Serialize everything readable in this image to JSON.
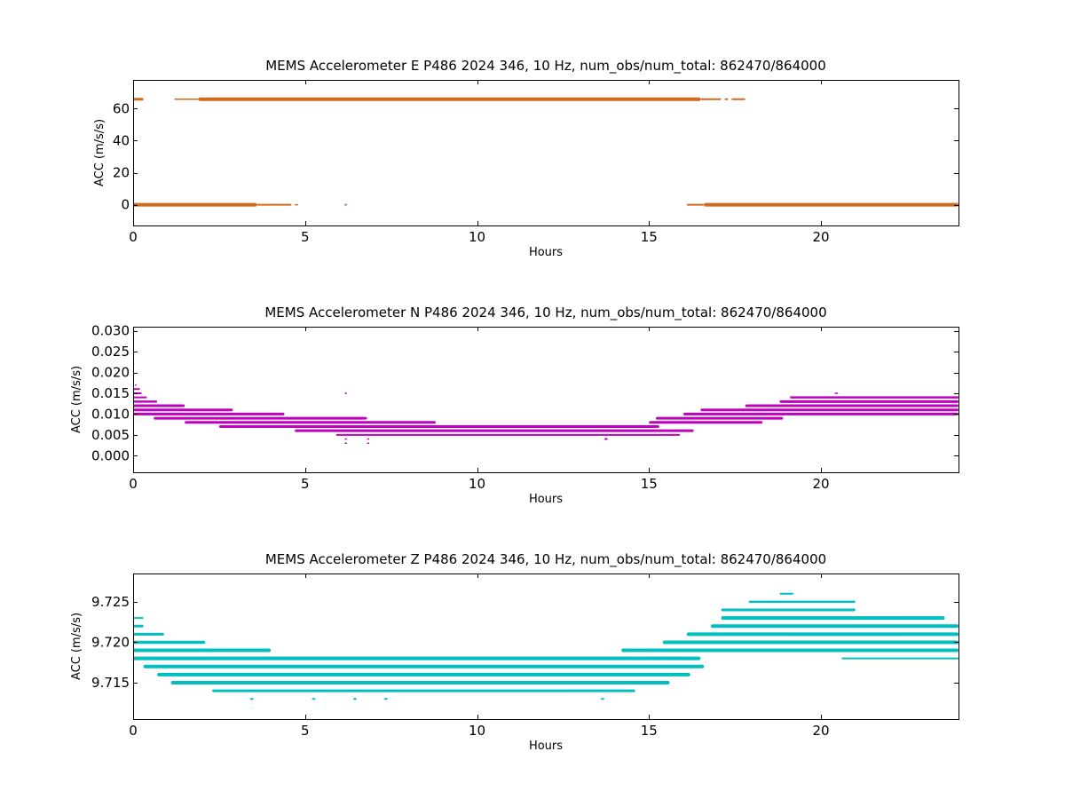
{
  "figure": {
    "background": "#ffffff"
  },
  "chart_data": [
    {
      "type": "scatter",
      "title": "MEMS Accelerometer E P486 2024 346, 10 Hz, num_obs/num_total: 862470/864000",
      "xlabel": "Hours",
      "ylabel": "ACC (m/s/s)",
      "xlim": [
        0,
        24
      ],
      "ylim": [
        -13,
        78
      ],
      "xticks": [
        0,
        5,
        10,
        15,
        20
      ],
      "xtick_labels": [
        "0",
        "5",
        "10",
        "15",
        "20"
      ],
      "yticks": [
        0,
        20,
        40,
        60
      ],
      "ytick_labels": [
        "0",
        "20",
        "40",
        "60"
      ],
      "grid": false,
      "legend": "none",
      "color": "#d2691e",
      "series": [
        {
          "segments": [
            {
              "y": 65.9,
              "x0": 0.0,
              "x1": 0.3,
              "w": 3
            },
            {
              "y": 65.9,
              "x0": 1.2,
              "x1": 1.9,
              "w": 1.5
            },
            {
              "y": 65.9,
              "x0": 1.9,
              "x1": 16.5,
              "w": 4
            },
            {
              "y": 65.9,
              "x0": 16.5,
              "x1": 17.1,
              "w": 2
            },
            {
              "y": 65.9,
              "x0": 17.2,
              "x1": 17.3,
              "w": 2
            },
            {
              "y": 65.9,
              "x0": 17.4,
              "x1": 17.8,
              "w": 2
            },
            {
              "y": 0.0,
              "x0": 0.0,
              "x1": 3.6,
              "w": 4
            },
            {
              "y": 0.0,
              "x0": 3.6,
              "x1": 4.6,
              "w": 2
            },
            {
              "y": 0.0,
              "x0": 4.7,
              "x1": 4.8,
              "w": 1.5
            },
            {
              "y": 0.0,
              "x0": 6.15,
              "x1": 6.22,
              "w": 2
            },
            {
              "y": 0.0,
              "x0": 16.1,
              "x1": 16.6,
              "w": 2
            },
            {
              "y": 0.0,
              "x0": 16.6,
              "x1": 24.0,
              "w": 4
            }
          ]
        }
      ]
    },
    {
      "type": "scatter",
      "title": "MEMS Accelerometer N P486 2024 346, 10 Hz, num_obs/num_total: 862470/864000",
      "xlabel": "Hours",
      "ylabel": "ACC (m/s/s)",
      "xlim": [
        0,
        24
      ],
      "ylim": [
        -0.004,
        0.031
      ],
      "xticks": [
        0,
        5,
        10,
        15,
        20
      ],
      "xtick_labels": [
        "0",
        "5",
        "10",
        "15",
        "20"
      ],
      "yticks": [
        0.0,
        0.005,
        0.01,
        0.015,
        0.02,
        0.025,
        0.03
      ],
      "ytick_labels": [
        "0.000",
        "0.005",
        "0.010",
        "0.015",
        "0.020",
        "0.025",
        "0.030"
      ],
      "grid": false,
      "legend": "none",
      "color": "#bf00bf",
      "series": [
        {
          "segments": [
            {
              "y": 0.017,
              "x0": 0.05,
              "x1": 0.1,
              "w": 1.5
            },
            {
              "y": 0.016,
              "x0": 0.0,
              "x1": 0.2,
              "w": 2
            },
            {
              "y": 0.015,
              "x0": 0.0,
              "x1": 0.25,
              "w": 2
            },
            {
              "y": 0.014,
              "x0": 0.0,
              "x1": 0.4,
              "w": 2
            },
            {
              "y": 0.013,
              "x0": 0.0,
              "x1": 0.7,
              "w": 2.5
            },
            {
              "y": 0.012,
              "x0": 0.0,
              "x1": 1.5,
              "w": 3
            },
            {
              "y": 0.011,
              "x0": 0.0,
              "x1": 2.9,
              "w": 3
            },
            {
              "y": 0.01,
              "x0": 0.0,
              "x1": 4.4,
              "w": 3
            },
            {
              "y": 0.009,
              "x0": 0.6,
              "x1": 6.8,
              "w": 3
            },
            {
              "y": 0.008,
              "x0": 1.5,
              "x1": 8.8,
              "w": 3
            },
            {
              "y": 0.007,
              "x0": 2.5,
              "x1": 15.3,
              "w": 3
            },
            {
              "y": 0.006,
              "x0": 4.7,
              "x1": 16.3,
              "w": 3
            },
            {
              "y": 0.005,
              "x0": 5.9,
              "x1": 15.9,
              "w": 2
            },
            {
              "y": 0.004,
              "x0": 13.7,
              "x1": 13.8,
              "w": 2
            },
            {
              "y": 0.008,
              "x0": 15.0,
              "x1": 18.3,
              "w": 3
            },
            {
              "y": 0.009,
              "x0": 15.2,
              "x1": 18.9,
              "w": 3
            },
            {
              "y": 0.01,
              "x0": 16.0,
              "x1": 24.0,
              "w": 3
            },
            {
              "y": 0.011,
              "x0": 16.5,
              "x1": 24.0,
              "w": 3
            },
            {
              "y": 0.012,
              "x0": 17.8,
              "x1": 24.0,
              "w": 3
            },
            {
              "y": 0.013,
              "x0": 18.8,
              "x1": 24.0,
              "w": 3
            },
            {
              "y": 0.014,
              "x0": 19.1,
              "x1": 24.0,
              "w": 2.5
            },
            {
              "y": 0.015,
              "x0": 20.4,
              "x1": 20.5,
              "w": 1.5
            },
            {
              "y": 0.015,
              "x0": 6.15,
              "x1": 6.22,
              "w": 1.5
            },
            {
              "y": 0.004,
              "x0": 6.15,
              "x1": 6.22,
              "w": 1.5
            },
            {
              "y": 0.003,
              "x0": 6.15,
              "x1": 6.22,
              "w": 1.5
            },
            {
              "y": 0.004,
              "x0": 6.8,
              "x1": 6.87,
              "w": 1.5
            },
            {
              "y": 0.003,
              "x0": 6.8,
              "x1": 6.87,
              "w": 1.5
            }
          ]
        }
      ]
    },
    {
      "type": "scatter",
      "title": "MEMS Accelerometer Z P486 2024 346, 10 Hz, num_obs/num_total: 862470/864000",
      "xlabel": "Hours",
      "ylabel": "ACC (m/s/s)",
      "xlim": [
        0,
        24
      ],
      "ylim": [
        9.7105,
        9.7285
      ],
      "xticks": [
        0,
        5,
        10,
        15,
        20
      ],
      "xtick_labels": [
        "0",
        "5",
        "10",
        "15",
        "20"
      ],
      "yticks": [
        9.715,
        9.72,
        9.725
      ],
      "ytick_labels": [
        "9.715",
        "9.720",
        "9.725"
      ],
      "grid": false,
      "legend": "none",
      "color": "#00bfbf",
      "series": [
        {
          "segments": [
            {
              "y": 9.723,
              "x0": 0.0,
              "x1": 0.3,
              "w": 2
            },
            {
              "y": 9.722,
              "x0": 0.0,
              "x1": 0.3,
              "w": 3
            },
            {
              "y": 9.721,
              "x0": 0.0,
              "x1": 0.9,
              "w": 3
            },
            {
              "y": 9.72,
              "x0": 0.0,
              "x1": 2.1,
              "w": 3.5
            },
            {
              "y": 9.719,
              "x0": 0.0,
              "x1": 4.0,
              "w": 4
            },
            {
              "y": 9.718,
              "x0": 0.0,
              "x1": 16.5,
              "w": 4
            },
            {
              "y": 9.717,
              "x0": 0.3,
              "x1": 16.6,
              "w": 4
            },
            {
              "y": 9.716,
              "x0": 0.7,
              "x1": 16.2,
              "w": 4
            },
            {
              "y": 9.715,
              "x0": 1.1,
              "x1": 15.6,
              "w": 4
            },
            {
              "y": 9.714,
              "x0": 2.3,
              "x1": 14.6,
              "w": 3
            },
            {
              "y": 9.713,
              "x0": 3.4,
              "x1": 3.5,
              "w": 2
            },
            {
              "y": 9.713,
              "x0": 5.2,
              "x1": 5.3,
              "w": 2
            },
            {
              "y": 9.713,
              "x0": 6.4,
              "x1": 6.5,
              "w": 2
            },
            {
              "y": 9.713,
              "x0": 7.3,
              "x1": 7.4,
              "w": 2
            },
            {
              "y": 9.713,
              "x0": 13.6,
              "x1": 13.7,
              "w": 2
            },
            {
              "y": 9.719,
              "x0": 14.2,
              "x1": 24.0,
              "w": 4
            },
            {
              "y": 9.72,
              "x0": 15.4,
              "x1": 24.0,
              "w": 4
            },
            {
              "y": 9.721,
              "x0": 16.1,
              "x1": 24.0,
              "w": 4
            },
            {
              "y": 9.722,
              "x0": 16.8,
              "x1": 24.0,
              "w": 4
            },
            {
              "y": 9.723,
              "x0": 17.1,
              "x1": 23.6,
              "w": 4
            },
            {
              "y": 9.724,
              "x0": 17.1,
              "x1": 21.0,
              "w": 3
            },
            {
              "y": 9.725,
              "x0": 17.9,
              "x1": 21.0,
              "w": 2.5
            },
            {
              "y": 9.726,
              "x0": 18.8,
              "x1": 19.2,
              "w": 2
            },
            {
              "y": 9.718,
              "x0": 20.6,
              "x1": 24.0,
              "w": 2
            }
          ]
        }
      ]
    }
  ]
}
